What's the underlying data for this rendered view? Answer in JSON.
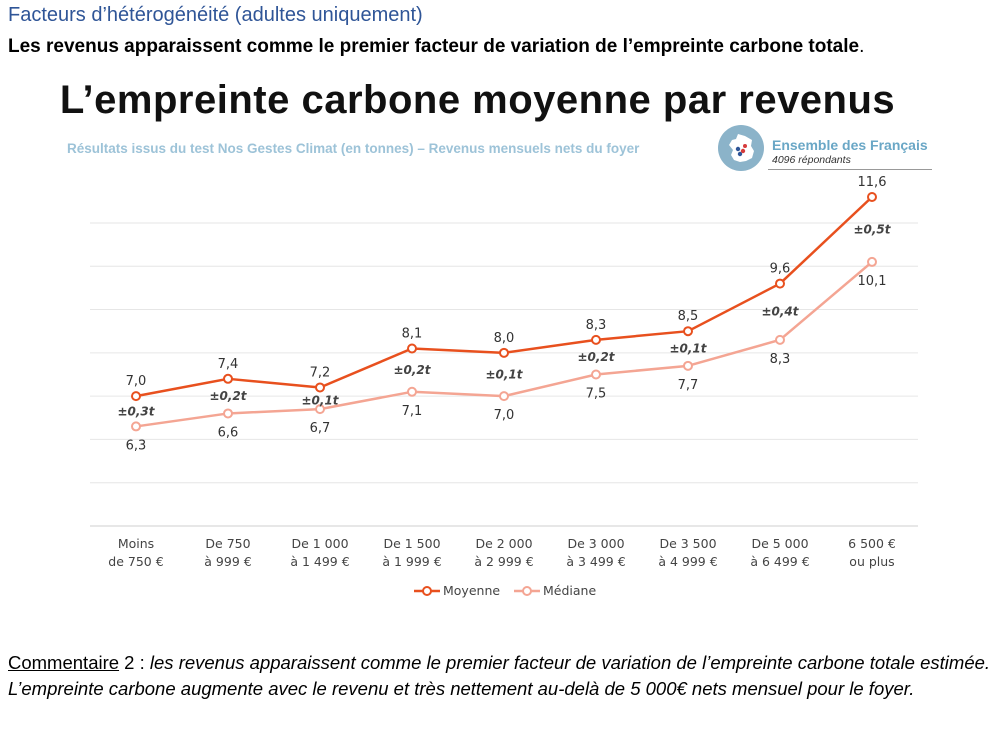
{
  "section_title": "Facteurs d’hétérogénéité (adultes uniquement)",
  "headline": "Les revenus apparaissent comme le premier facteur de variation de l’empreinte carbone totale",
  "headline_end": ".",
  "badge": {
    "title": "Ensemble des Français",
    "subtitle": "4096 répondants",
    "icon": "france-map-icon"
  },
  "chart_data": {
    "type": "line",
    "title": "L’empreinte carbone moyenne par revenus",
    "subtitle": "Résultats issus du test Nos Gestes Climat (en tonnes) – Revenus mensuels nets du foyer",
    "categories": [
      [
        "Moins",
        "de 750 €"
      ],
      [
        "De 750",
        "à 999 €"
      ],
      [
        "De 1 000",
        "à 1 499 €"
      ],
      [
        "De 1 500",
        "à 1 999 €"
      ],
      [
        "De 2 000",
        "à 2 999 €"
      ],
      [
        "De 3 000",
        "à 3 499 €"
      ],
      [
        "De 3 500",
        "à 4 999 €"
      ],
      [
        "De 5 000",
        "à 6 499 €"
      ],
      [
        "6 500 €",
        "ou plus"
      ]
    ],
    "series": [
      {
        "name": "Moyenne",
        "color": "#e8501e",
        "values": [
          7.0,
          7.4,
          7.2,
          8.1,
          8.0,
          8.3,
          8.5,
          9.6,
          11.6
        ],
        "labels": [
          "7,0",
          "7,4",
          "7,2",
          "8,1",
          "8,0",
          "8,3",
          "8,5",
          "9,6",
          "11,6"
        ]
      },
      {
        "name": "Médiane",
        "color": "#f4a593",
        "values": [
          6.3,
          6.6,
          6.7,
          7.1,
          7.0,
          7.5,
          7.7,
          8.3,
          10.1
        ],
        "labels": [
          "6,3",
          "6,6",
          "6,7",
          "7,1",
          "7,0",
          "7,5",
          "7,7",
          "8,3",
          "10,1"
        ]
      }
    ],
    "error_margins": [
      "±0,3t",
      "±0,2t",
      "±0,1t",
      "±0,2t",
      "±0,1t",
      "±0,2t",
      "±0,1t",
      "±0,4t",
      "±0,5t"
    ],
    "ylim": [
      4,
      11.9
    ],
    "grid": true,
    "legend": "bottom"
  },
  "comment": {
    "label": "Commentaire",
    "number": " 2 : ",
    "text": "les revenus apparaissent comme le premier facteur de variation de l’empreinte carbone totale estimée. L’empreinte carbone augmente avec le revenu et très nettement au-delà de 5 000€ nets mensuel pour le foyer."
  }
}
